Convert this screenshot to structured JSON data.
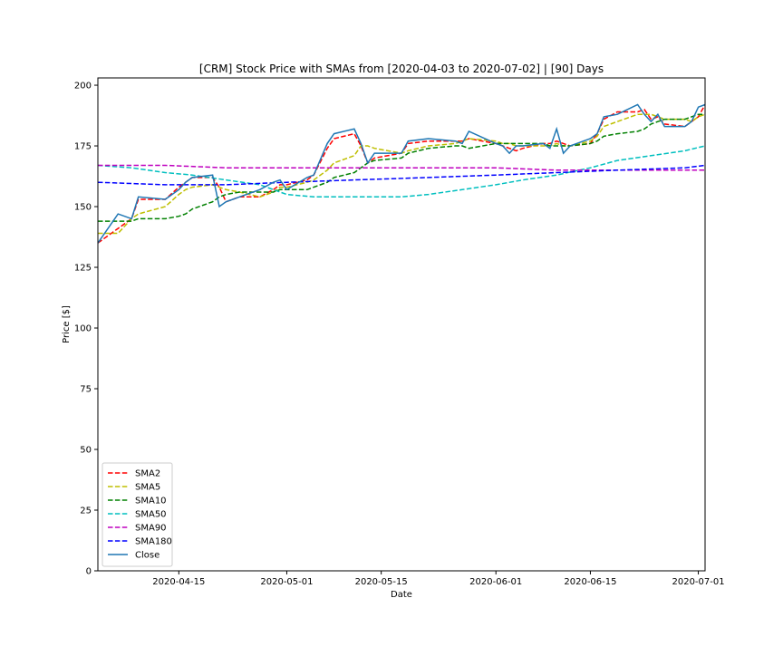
{
  "chart_data": {
    "type": "line",
    "title": "[CRM] Stock Price with SMAs from [2020-04-03 to 2020-07-02] | [90] Days",
    "xlabel": "Date",
    "ylabel": "Price [$]",
    "xlim": [
      "2020-04-03",
      "2020-07-02"
    ],
    "ylim": [
      0,
      203
    ],
    "x_ticks": [
      "2020-04-15",
      "2020-05-01",
      "2020-05-15",
      "2020-06-01",
      "2020-06-15",
      "2020-07-01"
    ],
    "y_ticks": [
      0,
      25,
      50,
      75,
      100,
      125,
      150,
      175,
      200
    ],
    "grid": false,
    "legend_position": "lower left",
    "series": [
      {
        "name": "SMA2",
        "color": "#ff0000",
        "dashed": true,
        "x": [
          "2020-04-03",
          "2020-04-06",
          "2020-04-08",
          "2020-04-09",
          "2020-04-13",
          "2020-04-15",
          "2020-04-16",
          "2020-04-17",
          "2020-04-20",
          "2020-04-21",
          "2020-04-22",
          "2020-04-24",
          "2020-04-27",
          "2020-04-29",
          "2020-04-30",
          "2020-05-01",
          "2020-05-04",
          "2020-05-05",
          "2020-05-07",
          "2020-05-08",
          "2020-05-11",
          "2020-05-12",
          "2020-05-13",
          "2020-05-14",
          "2020-05-18",
          "2020-05-19",
          "2020-05-22",
          "2020-05-26",
          "2020-05-27",
          "2020-05-28",
          "2020-06-01",
          "2020-06-02",
          "2020-06-03",
          "2020-06-04",
          "2020-06-05",
          "2020-06-08",
          "2020-06-09",
          "2020-06-10",
          "2020-06-11",
          "2020-06-12",
          "2020-06-15",
          "2020-06-16",
          "2020-06-17",
          "2020-06-19",
          "2020-06-22",
          "2020-06-23",
          "2020-06-24",
          "2020-06-25",
          "2020-06-26",
          "2020-06-29",
          "2020-06-30",
          "2020-07-01",
          "2020-07-02"
        ],
        "y": [
          135,
          141,
          145,
          153,
          153,
          158,
          160,
          162,
          162,
          158,
          152,
          154,
          154,
          157,
          159,
          159,
          161,
          163,
          174,
          178,
          180,
          175,
          168,
          170,
          172,
          176,
          177,
          177,
          177,
          178,
          176,
          175,
          174,
          173,
          174,
          176,
          176,
          177,
          176,
          175,
          176,
          180,
          186,
          189,
          189,
          190,
          186,
          187,
          184,
          183,
          185,
          187,
          192
        ]
      },
      {
        "name": "SMA5",
        "color": "#bfbf00",
        "dashed": true,
        "x": [
          "2020-04-03",
          "2020-04-06",
          "2020-04-08",
          "2020-04-09",
          "2020-04-13",
          "2020-04-15",
          "2020-04-16",
          "2020-04-17",
          "2020-04-20",
          "2020-04-21",
          "2020-04-22",
          "2020-04-24",
          "2020-04-27",
          "2020-04-29",
          "2020-04-30",
          "2020-05-01",
          "2020-05-04",
          "2020-05-05",
          "2020-05-07",
          "2020-05-08",
          "2020-05-11",
          "2020-05-12",
          "2020-05-13",
          "2020-05-14",
          "2020-05-18",
          "2020-05-19",
          "2020-05-22",
          "2020-05-26",
          "2020-05-27",
          "2020-05-28",
          "2020-06-01",
          "2020-06-02",
          "2020-06-03",
          "2020-06-04",
          "2020-06-05",
          "2020-06-08",
          "2020-06-09",
          "2020-06-10",
          "2020-06-11",
          "2020-06-12",
          "2020-06-15",
          "2020-06-16",
          "2020-06-17",
          "2020-06-19",
          "2020-06-22",
          "2020-06-23",
          "2020-06-24",
          "2020-06-25",
          "2020-06-26",
          "2020-06-29",
          "2020-06-30",
          "2020-07-01",
          "2020-07-02"
        ],
        "y": [
          139,
          139,
          145,
          147,
          150,
          155,
          157,
          158,
          159,
          158,
          157,
          156,
          154,
          156,
          158,
          158,
          160,
          161,
          165,
          168,
          171,
          175,
          175,
          174,
          172,
          173,
          175,
          176,
          177,
          178,
          177,
          176,
          176,
          175,
          175,
          175,
          175,
          176,
          175,
          175,
          177,
          179,
          183,
          185,
          188,
          188,
          188,
          187,
          186,
          186,
          185,
          187,
          188
        ]
      },
      {
        "name": "SMA10",
        "color": "#008000",
        "dashed": true,
        "x": [
          "2020-04-03",
          "2020-04-06",
          "2020-04-08",
          "2020-04-09",
          "2020-04-13",
          "2020-04-15",
          "2020-04-16",
          "2020-04-17",
          "2020-04-20",
          "2020-04-21",
          "2020-04-22",
          "2020-04-24",
          "2020-04-27",
          "2020-04-29",
          "2020-04-30",
          "2020-05-01",
          "2020-05-04",
          "2020-05-05",
          "2020-05-07",
          "2020-05-08",
          "2020-05-11",
          "2020-05-12",
          "2020-05-13",
          "2020-05-14",
          "2020-05-18",
          "2020-05-19",
          "2020-05-22",
          "2020-05-26",
          "2020-05-27",
          "2020-05-28",
          "2020-06-01",
          "2020-06-02",
          "2020-06-03",
          "2020-06-04",
          "2020-06-05",
          "2020-06-08",
          "2020-06-09",
          "2020-06-10",
          "2020-06-11",
          "2020-06-12",
          "2020-06-15",
          "2020-06-16",
          "2020-06-17",
          "2020-06-19",
          "2020-06-22",
          "2020-06-23",
          "2020-06-24",
          "2020-06-25",
          "2020-06-26",
          "2020-06-29",
          "2020-06-30",
          "2020-07-01",
          "2020-07-02"
        ],
        "y": [
          144,
          144,
          144,
          145,
          145,
          146,
          147,
          149,
          152,
          154,
          155,
          156,
          156,
          156,
          157,
          157,
          157,
          158,
          160,
          162,
          164,
          166,
          168,
          169,
          170,
          172,
          174,
          175,
          175,
          174,
          176,
          176,
          176,
          176,
          176,
          176,
          175,
          175,
          175,
          175,
          176,
          177,
          179,
          180,
          181,
          182,
          184,
          185,
          186,
          186,
          187,
          188,
          188
        ]
      },
      {
        "name": "SMA50",
        "color": "#00bfbf",
        "dashed": true,
        "x": [
          "2020-04-03",
          "2020-04-08",
          "2020-04-13",
          "2020-04-17",
          "2020-04-22",
          "2020-04-27",
          "2020-05-01",
          "2020-05-05",
          "2020-05-08",
          "2020-05-13",
          "2020-05-18",
          "2020-05-22",
          "2020-05-27",
          "2020-06-01",
          "2020-06-05",
          "2020-06-10",
          "2020-06-15",
          "2020-06-19",
          "2020-06-24",
          "2020-06-29",
          "2020-07-02"
        ],
        "y": [
          167,
          166,
          164,
          163,
          161,
          159,
          155,
          154,
          154,
          154,
          154,
          155,
          157,
          159,
          161,
          163,
          166,
          169,
          171,
          173,
          175
        ]
      },
      {
        "name": "SMA90",
        "color": "#bf00bf",
        "dashed": true,
        "x": [
          "2020-04-03",
          "2020-04-13",
          "2020-04-22",
          "2020-05-01",
          "2020-05-11",
          "2020-05-22",
          "2020-06-01",
          "2020-06-10",
          "2020-06-19",
          "2020-06-29",
          "2020-07-02"
        ],
        "y": [
          167,
          167,
          166,
          166,
          166,
          166,
          166,
          165,
          165,
          165,
          165
        ]
      },
      {
        "name": "SMA180",
        "color": "#0000ff",
        "dashed": true,
        "x": [
          "2020-04-03",
          "2020-04-13",
          "2020-04-22",
          "2020-05-01",
          "2020-05-11",
          "2020-05-22",
          "2020-06-01",
          "2020-06-10",
          "2020-06-19",
          "2020-06-29",
          "2020-07-02"
        ],
        "y": [
          160,
          159,
          159,
          160,
          161,
          162,
          163,
          164,
          165,
          166,
          167
        ]
      },
      {
        "name": "Close",
        "color": "#1f77b4",
        "dashed": false,
        "x": [
          "2020-04-03",
          "2020-04-06",
          "2020-04-08",
          "2020-04-09",
          "2020-04-13",
          "2020-04-15",
          "2020-04-16",
          "2020-04-17",
          "2020-04-20",
          "2020-04-21",
          "2020-04-22",
          "2020-04-24",
          "2020-04-27",
          "2020-04-29",
          "2020-04-30",
          "2020-05-01",
          "2020-05-04",
          "2020-05-05",
          "2020-05-07",
          "2020-05-08",
          "2020-05-11",
          "2020-05-12",
          "2020-05-13",
          "2020-05-14",
          "2020-05-18",
          "2020-05-19",
          "2020-05-22",
          "2020-05-26",
          "2020-05-27",
          "2020-05-28",
          "2020-06-01",
          "2020-06-02",
          "2020-06-03",
          "2020-06-04",
          "2020-06-05",
          "2020-06-08",
          "2020-06-09",
          "2020-06-10",
          "2020-06-11",
          "2020-06-12",
          "2020-06-15",
          "2020-06-16",
          "2020-06-17",
          "2020-06-19",
          "2020-06-22",
          "2020-06-23",
          "2020-06-24",
          "2020-06-25",
          "2020-06-26",
          "2020-06-29",
          "2020-06-30",
          "2020-07-01",
          "2020-07-02"
        ],
        "y": [
          135,
          147,
          145,
          154,
          153,
          157,
          160,
          162,
          163,
          150,
          152,
          154,
          157,
          160,
          161,
          157,
          162,
          163,
          176,
          180,
          182,
          176,
          168,
          172,
          172,
          177,
          178,
          177,
          176,
          181,
          176,
          175,
          172,
          175,
          175,
          176,
          174,
          182,
          172,
          175,
          178,
          180,
          187,
          188,
          192,
          188,
          185,
          188,
          183,
          183,
          185,
          191,
          192
        ]
      }
    ]
  }
}
